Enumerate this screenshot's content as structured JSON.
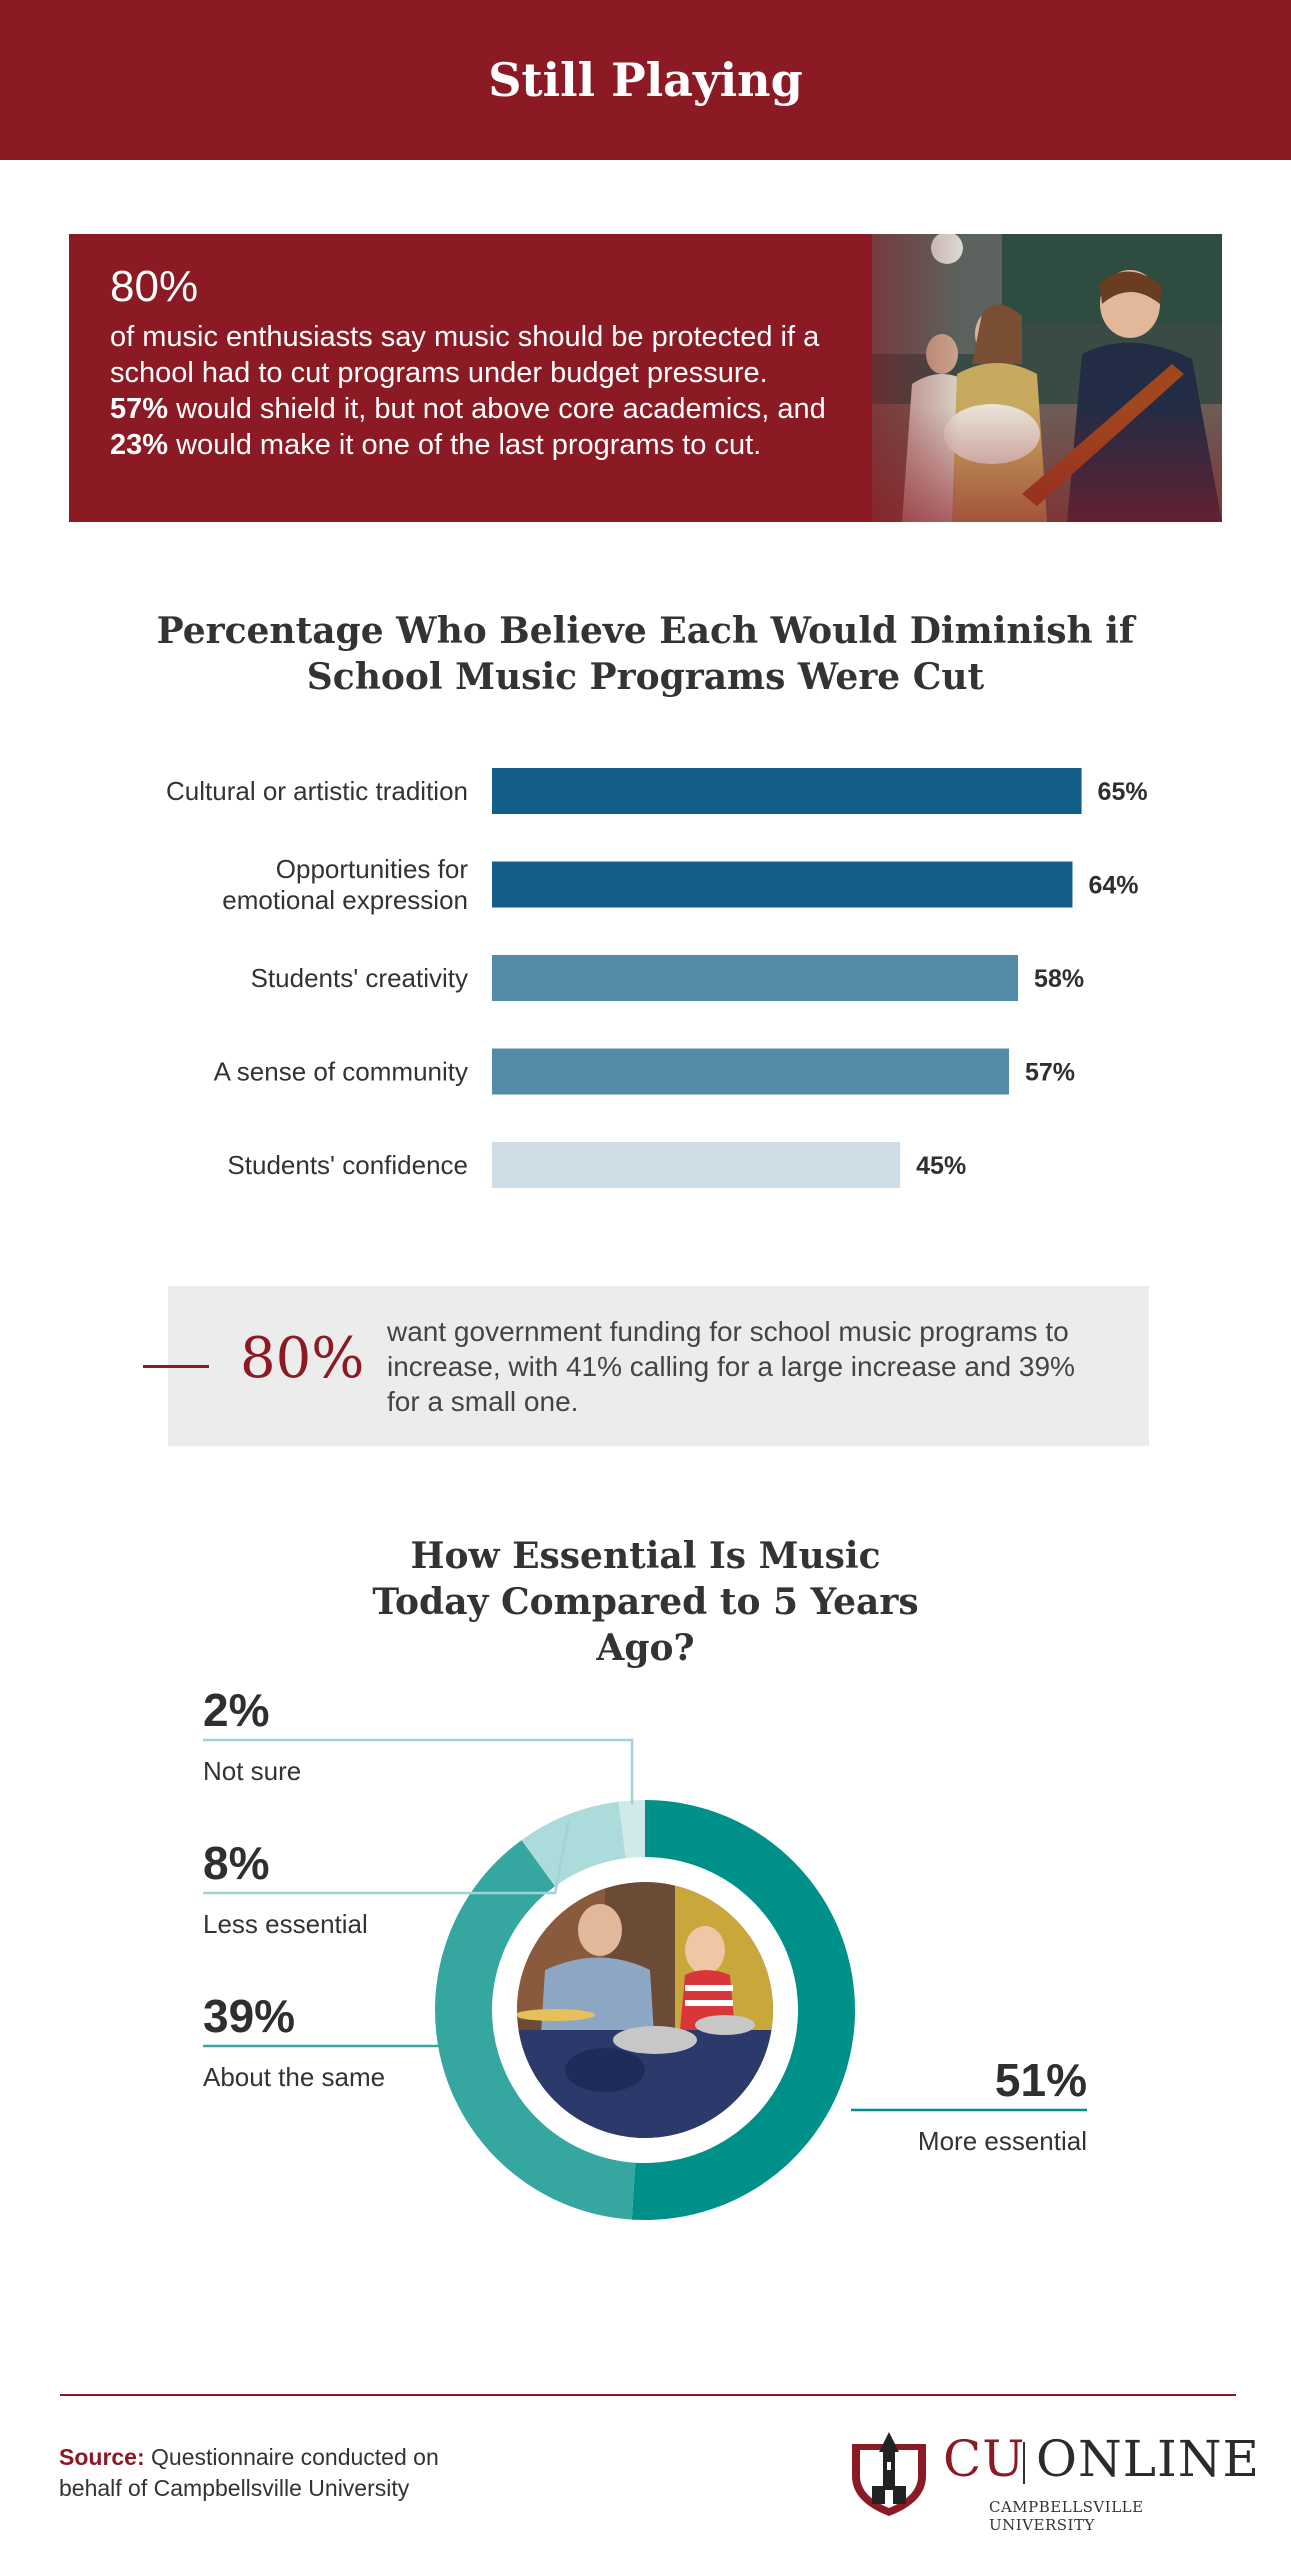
{
  "header": {
    "title": "Still Playing"
  },
  "stat_card": {
    "big": "80%",
    "part1": "of music enthusiasts say music should be protected if a school had to cut programs under budget pressure. ",
    "b1": "57%",
    "part2": " would shield it, but not above core academics, and ",
    "b2": "23%",
    "part3": " would make it one of the last programs to cut."
  },
  "callout": {
    "pct": "80%",
    "text": "want government funding for school music programs to increase, with 41% calling for a large increase and 39% for a small one."
  },
  "chart_data": [
    {
      "type": "bar",
      "orientation": "horizontal",
      "title": "Percentage Who Believe Each Would Diminish if School Music Programs Were Cut",
      "categories": [
        "Cultural or artistic tradition",
        "Opportunities for emotional expression",
        "Students' creativity",
        "A sense of community",
        "Students' confidence"
      ],
      "category_lines": [
        [
          "Cultural or artistic tradition"
        ],
        [
          "Opportunities for",
          "emotional expression"
        ],
        [
          "Students' creativity"
        ],
        [
          "A sense of community"
        ],
        [
          "Students' confidence"
        ]
      ],
      "values": [
        65,
        64,
        58,
        57,
        45
      ],
      "value_labels": [
        "65%",
        "64%",
        "58%",
        "57%",
        "45%"
      ],
      "bar_colors": [
        "#135e87",
        "#135e87",
        "#548ba9",
        "#548ba9",
        "#cfdde6"
      ],
      "grid": false
    },
    {
      "type": "pie",
      "style": "donut",
      "title": "How Essential Is Music Today Compared to 5 Years Ago?",
      "slices": [
        {
          "label": "More essential",
          "value": 51,
          "value_label": "51%",
          "color": "#00908a"
        },
        {
          "label": "About the same",
          "value": 39,
          "value_label": "39%",
          "color": "#36a6a1"
        },
        {
          "label": "Less essential",
          "value": 8,
          "value_label": "8%",
          "color": "#acdbdc"
        },
        {
          "label": "Not sure",
          "value": 2,
          "value_label": "2%",
          "color": "#d0eaea"
        }
      ]
    }
  ],
  "footer": {
    "source_label": "Source:",
    "source_lines": [
      "Questionnaire conducted on",
      "behalf of Campbellsville University"
    ],
    "logo_cu": "CU",
    "logo_online": "ONLINE",
    "logo_sub": "CAMPBELLSVILLE UNIVERSITY"
  },
  "colors": {
    "brand": "#8c1a24",
    "callout_bg": "#ececec"
  }
}
